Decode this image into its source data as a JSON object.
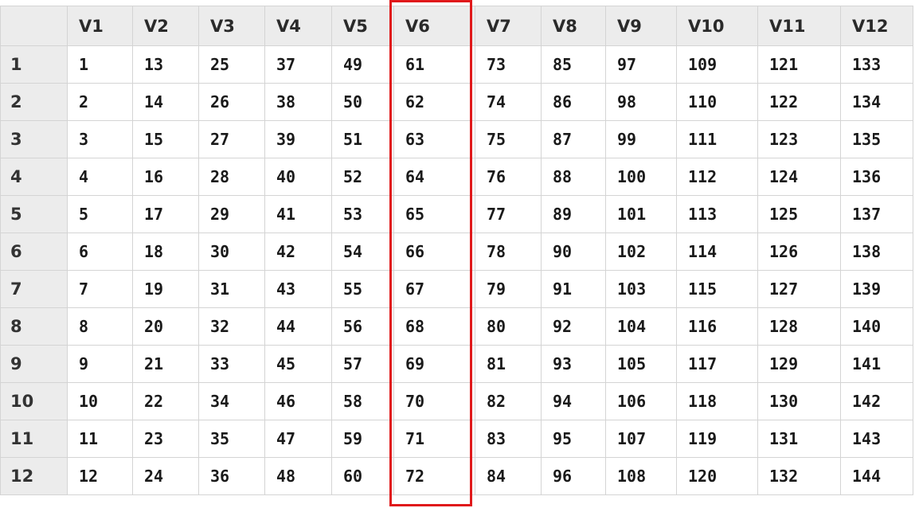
{
  "grid": {
    "columns": [
      "V1",
      "V2",
      "V3",
      "V4",
      "V5",
      "V6",
      "V7",
      "V8",
      "V9",
      "V10",
      "V11",
      "V12"
    ],
    "rows": [
      {
        "label": "1",
        "cells": [
          "1",
          "13",
          "25",
          "37",
          "49",
          "61",
          "73",
          "85",
          "97",
          "109",
          "121",
          "133"
        ]
      },
      {
        "label": "2",
        "cells": [
          "2",
          "14",
          "26",
          "38",
          "50",
          "62",
          "74",
          "86",
          "98",
          "110",
          "122",
          "134"
        ]
      },
      {
        "label": "3",
        "cells": [
          "3",
          "15",
          "27",
          "39",
          "51",
          "63",
          "75",
          "87",
          "99",
          "111",
          "123",
          "135"
        ]
      },
      {
        "label": "4",
        "cells": [
          "4",
          "16",
          "28",
          "40",
          "52",
          "64",
          "76",
          "88",
          "100",
          "112",
          "124",
          "136"
        ]
      },
      {
        "label": "5",
        "cells": [
          "5",
          "17",
          "29",
          "41",
          "53",
          "65",
          "77",
          "89",
          "101",
          "113",
          "125",
          "137"
        ]
      },
      {
        "label": "6",
        "cells": [
          "6",
          "18",
          "30",
          "42",
          "54",
          "66",
          "78",
          "90",
          "102",
          "114",
          "126",
          "138"
        ]
      },
      {
        "label": "7",
        "cells": [
          "7",
          "19",
          "31",
          "43",
          "55",
          "67",
          "79",
          "91",
          "103",
          "115",
          "127",
          "139"
        ]
      },
      {
        "label": "8",
        "cells": [
          "8",
          "20",
          "32",
          "44",
          "56",
          "68",
          "80",
          "92",
          "104",
          "116",
          "128",
          "140"
        ]
      },
      {
        "label": "9",
        "cells": [
          "9",
          "21",
          "33",
          "45",
          "57",
          "69",
          "81",
          "93",
          "105",
          "117",
          "129",
          "141"
        ]
      },
      {
        "label": "10",
        "cells": [
          "10",
          "22",
          "34",
          "46",
          "58",
          "70",
          "82",
          "94",
          "106",
          "118",
          "130",
          "142"
        ]
      },
      {
        "label": "11",
        "cells": [
          "11",
          "23",
          "35",
          "47",
          "59",
          "71",
          "83",
          "95",
          "107",
          "119",
          "131",
          "143"
        ]
      },
      {
        "label": "12",
        "cells": [
          "12",
          "24",
          "36",
          "48",
          "60",
          "72",
          "84",
          "96",
          "108",
          "120",
          "132",
          "144"
        ]
      }
    ],
    "highlighted_column": "V6"
  },
  "colors": {
    "header_bg": "#ececec",
    "cell_bg": "#ffffff",
    "grid_line": "#d4d4d4",
    "highlight": "#e0191b"
  }
}
